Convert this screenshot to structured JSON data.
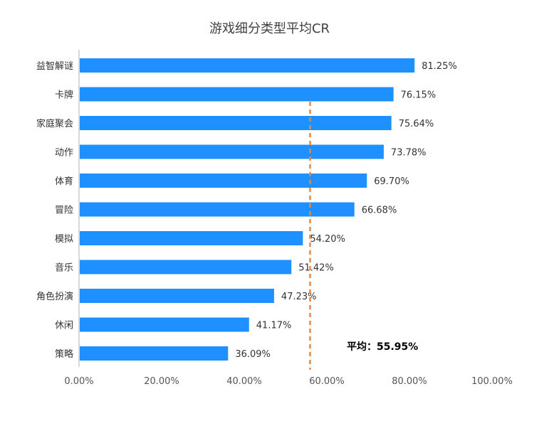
{
  "chart_data": {
    "type": "bar",
    "orientation": "horizontal",
    "title": "游戏细分类型平均CR",
    "categories": [
      "益智解谜",
      "卡牌",
      "家庭聚会",
      "动作",
      "体育",
      "冒险",
      "模拟",
      "音乐",
      "角色扮演",
      "休闲",
      "策略"
    ],
    "values": [
      81.25,
      76.15,
      75.64,
      73.78,
      69.7,
      66.68,
      54.2,
      51.42,
      47.23,
      41.17,
      36.09
    ],
    "value_labels": [
      "81.25%",
      "76.15%",
      "75.64%",
      "73.78%",
      "69.70%",
      "66.68%",
      "54.20%",
      "51.42%",
      "47.23%",
      "41.17%",
      "36.09%"
    ],
    "x_ticks": [
      "0.00%",
      "20.00%",
      "40.00%",
      "60.00%",
      "80.00%",
      "100.00%"
    ],
    "xlim": [
      0,
      100
    ],
    "grid": false,
    "average": {
      "value": 55.95,
      "label": "平均：55.95%"
    },
    "colors": {
      "bar": "#1e90ff",
      "average_line": "#e0894a",
      "axis": "#d9d9d9"
    }
  }
}
